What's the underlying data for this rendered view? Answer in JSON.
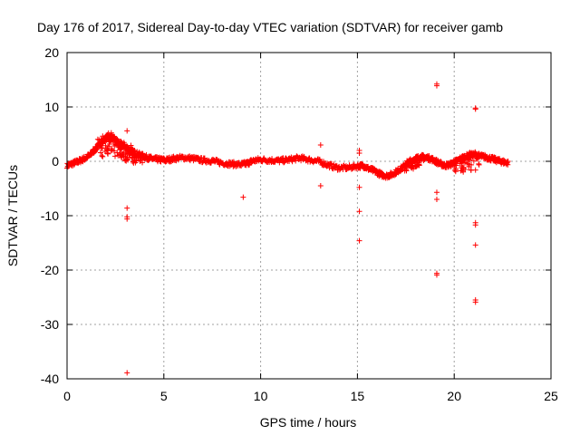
{
  "chart_data": {
    "type": "scatter",
    "title": "Day 176 of 2017, Sidereal Day-to-day VTEC variation (SDTVAR) for receiver gamb",
    "xlabel": "GPS time / hours",
    "ylabel": "SDTVAR / TECUs",
    "xlim": [
      0,
      25
    ],
    "ylim": [
      -40,
      20
    ],
    "xticks": [
      0,
      5,
      10,
      15,
      20,
      25
    ],
    "yticks": [
      -40,
      -30,
      -20,
      -10,
      0,
      10,
      20
    ],
    "xtick_labels": [
      "0",
      "5",
      "10",
      "15",
      "20",
      "25"
    ],
    "ytick_labels": [
      "-40",
      "-30",
      "-20",
      "-10",
      "0",
      "10",
      "20"
    ],
    "grid": true,
    "marker": "+",
    "color": "#ff0000",
    "curve": [
      [
        0.0,
        -0.8
      ],
      [
        0.3,
        -0.4
      ],
      [
        0.6,
        0.0
      ],
      [
        0.9,
        0.5
      ],
      [
        1.2,
        1.2
      ],
      [
        1.5,
        2.4
      ],
      [
        1.8,
        3.6
      ],
      [
        2.1,
        4.5
      ],
      [
        2.4,
        4.2
      ],
      [
        2.7,
        3.4
      ],
      [
        3.0,
        2.6
      ],
      [
        3.3,
        2.0
      ],
      [
        3.6,
        1.4
      ],
      [
        3.9,
        1.0
      ],
      [
        4.2,
        0.6
      ],
      [
        4.5,
        0.4
      ],
      [
        4.8,
        0.3
      ],
      [
        5.1,
        0.2
      ],
      [
        5.5,
        0.5
      ],
      [
        6.0,
        0.7
      ],
      [
        6.5,
        0.5
      ],
      [
        7.0,
        0.2
      ],
      [
        7.5,
        0.1
      ],
      [
        8.0,
        -0.3
      ],
      [
        8.5,
        -0.5
      ],
      [
        9.0,
        -0.6
      ],
      [
        9.3,
        -0.4
      ],
      [
        9.6,
        0.1
      ],
      [
        10.0,
        0.3
      ],
      [
        10.5,
        0.2
      ],
      [
        11.0,
        0.1
      ],
      [
        11.5,
        0.3
      ],
      [
        12.0,
        0.6
      ],
      [
        12.5,
        0.3
      ],
      [
        13.0,
        0.0
      ],
      [
        13.5,
        -0.7
      ],
      [
        14.0,
        -1.2
      ],
      [
        14.5,
        -1.2
      ],
      [
        15.0,
        -0.9
      ],
      [
        15.3,
        -0.8
      ],
      [
        15.6,
        -1.4
      ],
      [
        15.9,
        -1.8
      ],
      [
        16.2,
        -2.4
      ],
      [
        16.5,
        -2.7
      ],
      [
        16.8,
        -2.4
      ],
      [
        17.1,
        -1.7
      ],
      [
        17.4,
        -1.0
      ],
      [
        17.7,
        -0.1
      ],
      [
        18.0,
        0.5
      ],
      [
        18.3,
        0.8
      ],
      [
        18.6,
        0.7
      ],
      [
        18.9,
        0.3
      ],
      [
        19.2,
        -0.3
      ],
      [
        19.5,
        -0.8
      ],
      [
        19.8,
        -0.6
      ],
      [
        20.1,
        0.0
      ],
      [
        20.4,
        0.6
      ],
      [
        20.7,
        1.0
      ],
      [
        21.0,
        1.2
      ],
      [
        21.3,
        1.0
      ],
      [
        21.6,
        0.8
      ],
      [
        21.9,
        0.5
      ],
      [
        22.2,
        0.2
      ],
      [
        22.5,
        -0.1
      ],
      [
        22.8,
        -0.3
      ]
    ],
    "curve_spread": [
      [
        1.8,
        2.6,
        2.2
      ],
      [
        2.1,
        3.2,
        2.6
      ],
      [
        2.4,
        2.8,
        2.4
      ],
      [
        2.7,
        2.0,
        2.0
      ],
      [
        3.0,
        1.5,
        1.8
      ],
      [
        3.3,
        0.8,
        1.4
      ],
      [
        3.6,
        0.4,
        1.0
      ],
      [
        17.7,
        -0.8,
        1.2
      ],
      [
        18.0,
        -0.2,
        1.4
      ],
      [
        18.3,
        0.0,
        1.6
      ],
      [
        20.2,
        -0.8,
        1.6
      ],
      [
        20.6,
        -0.4,
        2.0
      ],
      [
        21.0,
        0.0,
        2.2
      ]
    ],
    "outliers": [
      [
        3.1,
        5.6
      ],
      [
        3.1,
        -8.6
      ],
      [
        3.1,
        -10.2
      ],
      [
        3.1,
        -10.6
      ],
      [
        3.1,
        -38.9
      ],
      [
        9.1,
        -6.6
      ],
      [
        13.1,
        3.0
      ],
      [
        13.1,
        -4.5
      ],
      [
        15.1,
        2.0
      ],
      [
        15.1,
        1.5
      ],
      [
        15.1,
        -4.8
      ],
      [
        15.1,
        -9.2
      ],
      [
        15.1,
        -14.6
      ],
      [
        19.1,
        14.2
      ],
      [
        19.1,
        13.9
      ],
      [
        19.1,
        -5.7
      ],
      [
        19.1,
        -7.0
      ],
      [
        19.1,
        -20.6
      ],
      [
        19.1,
        -20.9
      ],
      [
        21.1,
        9.8
      ],
      [
        21.1,
        9.6
      ],
      [
        21.1,
        -1.6
      ],
      [
        21.1,
        -11.3
      ],
      [
        21.1,
        -11.7
      ],
      [
        21.1,
        -15.4
      ],
      [
        21.1,
        -25.5
      ],
      [
        21.1,
        -25.9
      ]
    ]
  }
}
